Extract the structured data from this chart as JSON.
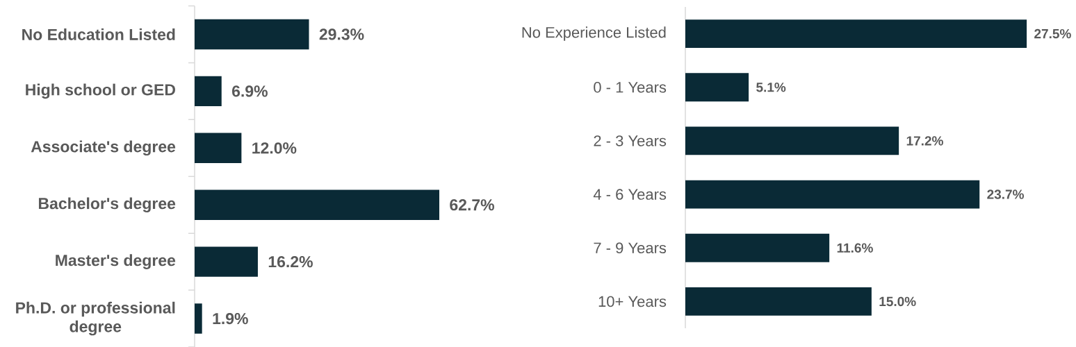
{
  "chart_data": [
    {
      "type": "bar",
      "orientation": "horizontal",
      "categories": [
        "No Education Listed",
        "High school or GED",
        "Associate's degree",
        "Bachelor's degree",
        "Master's degree",
        "Ph.D. or professional degree"
      ],
      "values": [
        29.3,
        6.9,
        12.0,
        62.7,
        16.2,
        1.9
      ],
      "value_labels": [
        "29.3%",
        "6.9%",
        "12.0%",
        "62.7%",
        "16.2%",
        "1.9%"
      ],
      "color": "#0a2a36"
    },
    {
      "type": "bar",
      "orientation": "horizontal",
      "categories": [
        "No Experience Listed",
        "0 - 1 Years",
        "2 - 3 Years",
        "4 - 6 Years",
        "7 - 9 Years",
        "10+ Years"
      ],
      "values": [
        27.5,
        5.1,
        17.2,
        23.7,
        11.6,
        15.0
      ],
      "value_labels": [
        "27.5%",
        "5.1%",
        "17.2%",
        "23.7%",
        "11.6%",
        "15.0%"
      ],
      "color": "#0a2a36"
    }
  ]
}
